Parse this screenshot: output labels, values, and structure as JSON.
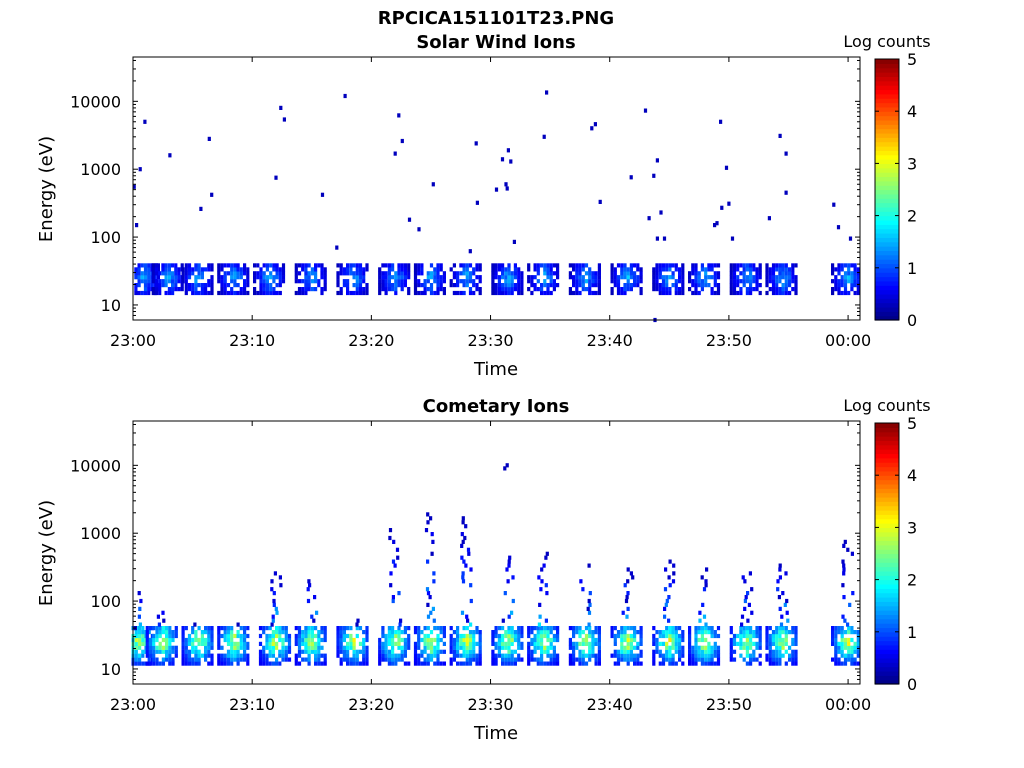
{
  "figure": {
    "title": "RPCICA151101T23.PNG"
  },
  "chart_data": [
    {
      "type": "heatmap",
      "title": "Solar Wind Ions",
      "xlabel": "Time",
      "ylabel": "Energy (eV)",
      "y_scale": "log",
      "xlim": [
        "23:00",
        "00:01"
      ],
      "ylim": [
        6,
        45000
      ],
      "x_ticks": [
        "23:00",
        "23:10",
        "23:20",
        "23:30",
        "23:40",
        "23:50",
        "00:00"
      ],
      "y_ticks": [
        "10",
        "100",
        "1000",
        "10000"
      ],
      "colorbar": {
        "label": "Log counts",
        "min": 0,
        "max": 5,
        "ticks": [
          "0",
          "1",
          "2",
          "3",
          "4",
          "5"
        ],
        "colormap": "jet"
      },
      "grid": false,
      "bursts_minutes": [
        1,
        3,
        5.5,
        8.5,
        11.5,
        15,
        18.5,
        22,
        25,
        28,
        31.5,
        34.5,
        38,
        41.5,
        45,
        48,
        51.5,
        54.5,
        60
      ],
      "burst_energy_eV": [
        15,
        40
      ],
      "burst_log_counts": [
        0.2,
        1.8
      ],
      "sparse_points": [
        {
          "t": 0.1,
          "e": 550
        },
        {
          "t": 0.3,
          "e": 150
        },
        {
          "t": 0.6,
          "e": 1000
        },
        {
          "t": 1.0,
          "e": 5000
        },
        {
          "t": 3.1,
          "e": 1600
        },
        {
          "t": 5.7,
          "e": 260
        },
        {
          "t": 6.4,
          "e": 2800
        },
        {
          "t": 6.6,
          "e": 420
        },
        {
          "t": 12.0,
          "e": 750
        },
        {
          "t": 12.4,
          "e": 8000
        },
        {
          "t": 12.7,
          "e": 5400
        },
        {
          "t": 15.9,
          "e": 420
        },
        {
          "t": 17.1,
          "e": 70
        },
        {
          "t": 17.8,
          "e": 12000
        },
        {
          "t": 22.0,
          "e": 1700
        },
        {
          "t": 22.3,
          "e": 6200
        },
        {
          "t": 22.6,
          "e": 2600
        },
        {
          "t": 23.2,
          "e": 180
        },
        {
          "t": 24.0,
          "e": 130
        },
        {
          "t": 25.2,
          "e": 600
        },
        {
          "t": 28.8,
          "e": 2400
        },
        {
          "t": 28.9,
          "e": 320
        },
        {
          "t": 28.3,
          "e": 62
        },
        {
          "t": 30.5,
          "e": 500
        },
        {
          "t": 31.0,
          "e": 1400
        },
        {
          "t": 31.3,
          "e": 600
        },
        {
          "t": 31.5,
          "e": 1900
        },
        {
          "t": 31.7,
          "e": 1300
        },
        {
          "t": 31.4,
          "e": 520
        },
        {
          "t": 34.5,
          "e": 3000
        },
        {
          "t": 34.7,
          "e": 13500
        },
        {
          "t": 32.0,
          "e": 85
        },
        {
          "t": 38.5,
          "e": 4000
        },
        {
          "t": 38.8,
          "e": 4600
        },
        {
          "t": 39.2,
          "e": 330
        },
        {
          "t": 41.8,
          "e": 760
        },
        {
          "t": 43.0,
          "e": 7300
        },
        {
          "t": 43.3,
          "e": 190
        },
        {
          "t": 43.7,
          "e": 800
        },
        {
          "t": 44.0,
          "e": 1350
        },
        {
          "t": 44.0,
          "e": 95
        },
        {
          "t": 44.3,
          "e": 230
        },
        {
          "t": 44.6,
          "e": 95
        },
        {
          "t": 43.8,
          "e": 6
        },
        {
          "t": 48.8,
          "e": 150
        },
        {
          "t": 49.0,
          "e": 160
        },
        {
          "t": 49.3,
          "e": 5000
        },
        {
          "t": 49.4,
          "e": 270
        },
        {
          "t": 49.8,
          "e": 1050
        },
        {
          "t": 50.0,
          "e": 310
        },
        {
          "t": 50.3,
          "e": 95
        },
        {
          "t": 53.4,
          "e": 190
        },
        {
          "t": 54.3,
          "e": 3100
        },
        {
          "t": 54.8,
          "e": 1700
        },
        {
          "t": 54.8,
          "e": 450
        },
        {
          "t": 58.8,
          "e": 300
        },
        {
          "t": 59.2,
          "e": 140
        },
        {
          "t": 60.2,
          "e": 95
        }
      ]
    },
    {
      "type": "heatmap",
      "title": "Cometary Ions",
      "xlabel": "Time",
      "ylabel": "Energy (eV)",
      "y_scale": "log",
      "xlim": [
        "23:00",
        "00:01"
      ],
      "ylim": [
        6,
        45000
      ],
      "x_ticks": [
        "23:00",
        "23:10",
        "23:20",
        "23:30",
        "23:40",
        "23:50",
        "00:00"
      ],
      "y_ticks": [
        "10",
        "100",
        "1000",
        "10000"
      ],
      "colorbar": {
        "label": "Log counts",
        "min": 0,
        "max": 5,
        "ticks": [
          "0",
          "1",
          "2",
          "3",
          "4",
          "5"
        ],
        "colormap": "jet"
      },
      "grid": false,
      "bursts_minutes": [
        0.5,
        2.5,
        5.5,
        8.5,
        12,
        15,
        18.5,
        22,
        25,
        28,
        31.5,
        34.5,
        38,
        41.5,
        45,
        48,
        51.5,
        54.5,
        60
      ],
      "burst_energy_eV": [
        12,
        45
      ],
      "burst_log_counts": [
        0.5,
        3.6
      ],
      "plume_tops_eV": [
        150,
        75,
        45,
        45,
        300,
        230,
        70,
        1150,
        2000,
        1700,
        550,
        550,
        350,
        400,
        400,
        320,
        310,
        380,
        820
      ],
      "sparse_points": [
        {
          "t": 31.2,
          "e": 9000
        },
        {
          "t": 31.4,
          "e": 10000
        },
        {
          "t": 0.2,
          "e": 40
        }
      ]
    }
  ]
}
